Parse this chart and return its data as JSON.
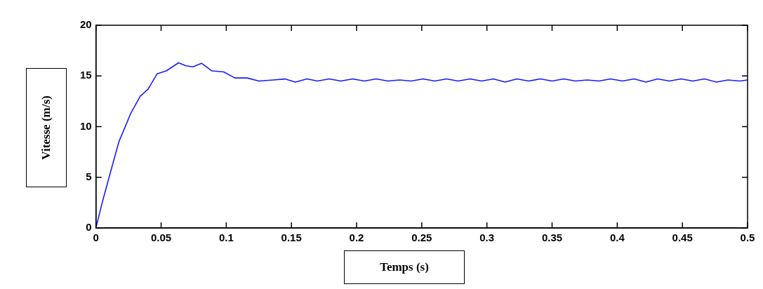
{
  "chart_data": {
    "type": "line",
    "xlabel": "Temps (s)",
    "ylabel": "Vitesse (m/s)",
    "x": [
      0,
      0.005,
      0.0103,
      0.0176,
      0.0267,
      0.034,
      0.04,
      0.0469,
      0.054,
      0.0634,
      0.069,
      0.0745,
      0.081,
      0.089,
      0.098,
      0.1066,
      0.116,
      0.125,
      0.136,
      0.145,
      0.153,
      0.162,
      0.17,
      0.179,
      0.188,
      0.197,
      0.206,
      0.215,
      0.224,
      0.233,
      0.242,
      0.251,
      0.26,
      0.269,
      0.278,
      0.287,
      0.296,
      0.305,
      0.314,
      0.323,
      0.332,
      0.341,
      0.35,
      0.359,
      0.368,
      0.377,
      0.386,
      0.395,
      0.404,
      0.413,
      0.422,
      0.431,
      0.44,
      0.449,
      0.458,
      0.467,
      0.476,
      0.485,
      0.494,
      0.5
    ],
    "series": [
      {
        "color": "#1a1aff",
        "values": [
          0,
          2.6,
          5.1,
          8.5,
          11.3,
          13.0,
          13.7,
          15.2,
          15.5,
          16.3,
          16.0,
          15.9,
          16.25,
          15.5,
          15.4,
          14.8,
          14.8,
          14.5,
          14.6,
          14.7,
          14.4,
          14.7,
          14.5,
          14.7,
          14.5,
          14.7,
          14.5,
          14.7,
          14.5,
          14.6,
          14.5,
          14.7,
          14.5,
          14.7,
          14.5,
          14.7,
          14.5,
          14.7,
          14.4,
          14.7,
          14.5,
          14.7,
          14.5,
          14.7,
          14.5,
          14.6,
          14.5,
          14.7,
          14.5,
          14.7,
          14.4,
          14.7,
          14.5,
          14.7,
          14.5,
          14.7,
          14.4,
          14.6,
          14.5,
          14.6
        ]
      }
    ],
    "xlim": [
      0,
      0.5
    ],
    "xticks": [
      0,
      0.05,
      0.1,
      0.15,
      0.2,
      0.25,
      0.3,
      0.35,
      0.4,
      0.45,
      0.5
    ],
    "ylim": [
      0,
      20
    ],
    "yticks": [
      0,
      5,
      10,
      15,
      20
    ],
    "grid": false,
    "legend": false,
    "marker": "none",
    "line_style": "solid"
  }
}
